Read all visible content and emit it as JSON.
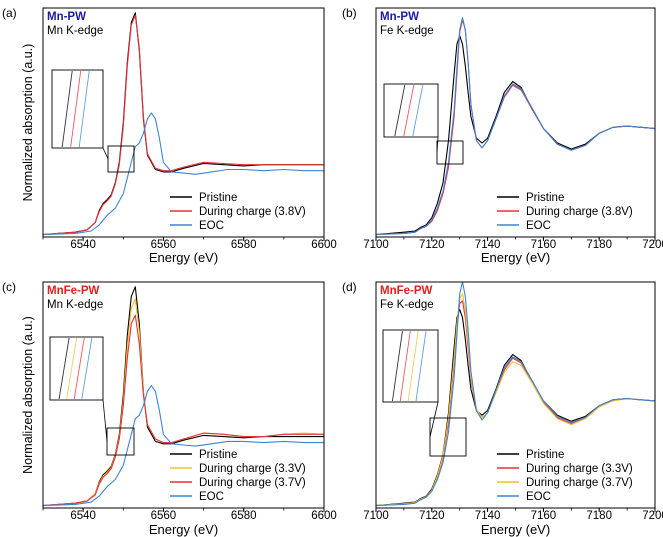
{
  "figure": {
    "description_free": true
  },
  "colors": {
    "pristine": "#000000",
    "during_red": "#e8303a",
    "during_yellow": "#f2c230",
    "eoc": "#3a86d6",
    "mn_pw_label": "#1a1aa8",
    "mnfe_pw_label": "#e02020"
  },
  "chart_data": [
    {
      "type": "line",
      "panel_label": "(a)",
      "title": "Mn-PW",
      "subtitle": "Mn K-edge",
      "title_color": "#1a1aa8",
      "xlabel": "Energy (eV)",
      "ylabel": "Normalized absorption (a.u.)",
      "xlim": [
        6530,
        6600
      ],
      "ylim": [
        0,
        1.9
      ],
      "x_ticks": [
        6540,
        6560,
        6580,
        6600
      ],
      "legend": "bottom-right",
      "series": [
        {
          "name": "Pristine",
          "color": "#000000",
          "x": [
            6530,
            6538,
            6541,
            6543,
            6544,
            6545,
            6546,
            6547,
            6548,
            6549,
            6550,
            6551,
            6552,
            6553,
            6554,
            6555,
            6556,
            6558,
            6560,
            6562,
            6565,
            6570,
            6575,
            6580,
            6585,
            6590,
            6595,
            6600
          ],
          "y": [
            0.02,
            0.04,
            0.06,
            0.12,
            0.22,
            0.28,
            0.31,
            0.35,
            0.45,
            0.62,
            0.95,
            1.45,
            1.78,
            1.86,
            1.55,
            0.98,
            0.68,
            0.56,
            0.54,
            0.54,
            0.57,
            0.61,
            0.6,
            0.59,
            0.6,
            0.6,
            0.6,
            0.6
          ]
        },
        {
          "name": "During charge (3.8V)",
          "color": "#e8303a",
          "x": [
            6530,
            6538,
            6541,
            6543,
            6544,
            6545,
            6546,
            6547,
            6548,
            6549,
            6550,
            6551,
            6552,
            6553,
            6554,
            6555,
            6556,
            6558,
            6560,
            6562,
            6565,
            6570,
            6575,
            6580,
            6585,
            6590,
            6595,
            6600
          ],
          "y": [
            0.02,
            0.04,
            0.06,
            0.12,
            0.21,
            0.27,
            0.3,
            0.34,
            0.44,
            0.6,
            0.92,
            1.42,
            1.76,
            1.84,
            1.57,
            1.0,
            0.69,
            0.57,
            0.55,
            0.55,
            0.58,
            0.62,
            0.61,
            0.6,
            0.6,
            0.6,
            0.6,
            0.6
          ]
        },
        {
          "name": "EOC",
          "color": "#3a86d6",
          "x": [
            6530,
            6538,
            6542,
            6544,
            6546,
            6548,
            6550,
            6552,
            6553,
            6554,
            6555,
            6556,
            6557,
            6558,
            6559,
            6560,
            6562,
            6565,
            6568,
            6572,
            6576,
            6580,
            6585,
            6590,
            6595,
            6600
          ],
          "y": [
            0.02,
            0.03,
            0.05,
            0.1,
            0.18,
            0.24,
            0.36,
            0.62,
            0.75,
            0.78,
            0.86,
            0.98,
            1.03,
            0.98,
            0.82,
            0.62,
            0.54,
            0.53,
            0.52,
            0.54,
            0.56,
            0.56,
            0.55,
            0.56,
            0.55,
            0.55
          ]
        }
      ]
    },
    {
      "type": "line",
      "panel_label": "(b)",
      "title": "Mn-PW",
      "subtitle": "Fe K-edge",
      "title_color": "#1a1aa8",
      "xlabel": "Energy (eV)",
      "ylabel": "",
      "xlim": [
        7100,
        7200
      ],
      "ylim": [
        0,
        1.9
      ],
      "x_ticks": [
        7100,
        7120,
        7140,
        7160,
        7180,
        7200
      ],
      "legend": "bottom-right",
      "series": [
        {
          "name": "Pristine",
          "color": "#000000",
          "x": [
            7100,
            7110,
            7114,
            7116,
            7118,
            7120,
            7122,
            7124,
            7126,
            7128,
            7129,
            7130,
            7131,
            7132,
            7133,
            7134,
            7136,
            7138,
            7140,
            7143,
            7146,
            7149,
            7152,
            7156,
            7160,
            7165,
            7170,
            7175,
            7180,
            7185,
            7190,
            7195,
            7200
          ],
          "y": [
            0.02,
            0.04,
            0.05,
            0.08,
            0.1,
            0.16,
            0.28,
            0.45,
            0.8,
            1.35,
            1.6,
            1.67,
            1.6,
            1.42,
            1.2,
            1.0,
            0.82,
            0.78,
            0.82,
            1.0,
            1.2,
            1.29,
            1.24,
            1.06,
            0.9,
            0.78,
            0.73,
            0.77,
            0.86,
            0.91,
            0.92,
            0.91,
            0.9
          ]
        },
        {
          "name": "During charge (3.8V)",
          "color": "#e8303a",
          "x": [
            7100,
            7110,
            7114,
            7116,
            7118,
            7120,
            7122,
            7124,
            7126,
            7128,
            7129,
            7130,
            7131,
            7132,
            7133,
            7134,
            7136,
            7138,
            7140,
            7143,
            7146,
            7149,
            7152,
            7156,
            7160,
            7165,
            7170,
            7175,
            7180,
            7185,
            7190,
            7195,
            7200
          ],
          "y": [
            0.02,
            0.03,
            0.04,
            0.07,
            0.09,
            0.13,
            0.22,
            0.36,
            0.58,
            1.0,
            1.35,
            1.7,
            1.8,
            1.72,
            1.45,
            1.1,
            0.8,
            0.74,
            0.8,
            0.98,
            1.16,
            1.26,
            1.22,
            1.06,
            0.9,
            0.77,
            0.72,
            0.76,
            0.86,
            0.91,
            0.92,
            0.91,
            0.9
          ]
        },
        {
          "name": "EOC",
          "color": "#3a86d6",
          "x": [
            7100,
            7110,
            7114,
            7116,
            7118,
            7120,
            7122,
            7124,
            7126,
            7128,
            7129,
            7130,
            7131,
            7132,
            7133,
            7134,
            7136,
            7138,
            7140,
            7143,
            7146,
            7149,
            7152,
            7156,
            7160,
            7165,
            7170,
            7175,
            7180,
            7185,
            7190,
            7195,
            7200
          ],
          "y": [
            0.02,
            0.03,
            0.04,
            0.07,
            0.09,
            0.14,
            0.24,
            0.38,
            0.62,
            1.05,
            1.4,
            1.72,
            1.82,
            1.72,
            1.45,
            1.1,
            0.8,
            0.74,
            0.8,
            0.98,
            1.17,
            1.27,
            1.23,
            1.07,
            0.9,
            0.77,
            0.72,
            0.76,
            0.86,
            0.91,
            0.92,
            0.91,
            0.9
          ]
        }
      ]
    },
    {
      "type": "line",
      "panel_label": "(c)",
      "title": "MnFe-PW",
      "subtitle": "Mn K-edge",
      "title_color": "#e02020",
      "xlabel": "Energy (eV)",
      "ylabel": "Normalized absorption (a.u.)",
      "xlim": [
        6530,
        6600
      ],
      "ylim": [
        0,
        1.9
      ],
      "x_ticks": [
        6540,
        6560,
        6580,
        6600
      ],
      "legend": "bottom-right",
      "series": [
        {
          "name": "Pristine",
          "color": "#000000",
          "x": [
            6530,
            6538,
            6541,
            6543,
            6544,
            6545,
            6546,
            6547,
            6548,
            6549,
            6550,
            6551,
            6552,
            6553,
            6554,
            6555,
            6556,
            6558,
            6560,
            6562,
            6565,
            6570,
            6575,
            6580,
            6585,
            6590,
            6595,
            6600
          ],
          "y": [
            0.02,
            0.04,
            0.06,
            0.12,
            0.22,
            0.28,
            0.31,
            0.35,
            0.45,
            0.62,
            0.95,
            1.45,
            1.78,
            1.86,
            1.55,
            0.98,
            0.68,
            0.56,
            0.54,
            0.54,
            0.57,
            0.61,
            0.6,
            0.59,
            0.6,
            0.6,
            0.6,
            0.6
          ]
        },
        {
          "name": "During charge (3.3V)",
          "color": "#f2c230",
          "x": [
            6530,
            6538,
            6541,
            6543,
            6544,
            6545,
            6546,
            6547,
            6548,
            6549,
            6550,
            6551,
            6552,
            6553,
            6554,
            6555,
            6556,
            6558,
            6560,
            6562,
            6565,
            6570,
            6575,
            6580,
            6585,
            6590,
            6595,
            6600
          ],
          "y": [
            0.02,
            0.04,
            0.06,
            0.12,
            0.21,
            0.27,
            0.3,
            0.34,
            0.44,
            0.6,
            0.9,
            1.36,
            1.68,
            1.76,
            1.48,
            0.98,
            0.7,
            0.58,
            0.55,
            0.55,
            0.58,
            0.63,
            0.62,
            0.6,
            0.6,
            0.62,
            0.63,
            0.62
          ]
        },
        {
          "name": "During charge (3.7V)",
          "color": "#e8303a",
          "x": [
            6530,
            6538,
            6541,
            6543,
            6544,
            6545,
            6546,
            6547,
            6548,
            6549,
            6550,
            6551,
            6552,
            6553,
            6554,
            6555,
            6556,
            6558,
            6560,
            6562,
            6565,
            6570,
            6575,
            6580,
            6585,
            6590,
            6595,
            6600
          ],
          "y": [
            0.02,
            0.04,
            0.06,
            0.11,
            0.2,
            0.26,
            0.29,
            0.33,
            0.43,
            0.58,
            0.86,
            1.26,
            1.55,
            1.62,
            1.38,
            0.95,
            0.7,
            0.58,
            0.55,
            0.55,
            0.58,
            0.63,
            0.62,
            0.6,
            0.6,
            0.62,
            0.62,
            0.62
          ]
        },
        {
          "name": "EOC",
          "color": "#3a86d6",
          "x": [
            6530,
            6538,
            6542,
            6544,
            6546,
            6548,
            6550,
            6552,
            6553,
            6554,
            6555,
            6556,
            6557,
            6558,
            6559,
            6560,
            6562,
            6565,
            6568,
            6572,
            6576,
            6580,
            6585,
            6590,
            6595,
            6600
          ],
          "y": [
            0.02,
            0.03,
            0.05,
            0.1,
            0.18,
            0.24,
            0.36,
            0.62,
            0.75,
            0.78,
            0.86,
            0.98,
            1.03,
            0.98,
            0.82,
            0.62,
            0.54,
            0.53,
            0.52,
            0.54,
            0.56,
            0.56,
            0.55,
            0.56,
            0.55,
            0.55
          ]
        }
      ]
    },
    {
      "type": "line",
      "panel_label": "(d)",
      "title": "MnFe-PW",
      "subtitle": "Fe K-edge",
      "title_color": "#e02020",
      "xlabel": "Energy (eV)",
      "ylabel": "",
      "xlim": [
        7100,
        7200
      ],
      "ylim": [
        0,
        1.9
      ],
      "x_ticks": [
        7100,
        7120,
        7140,
        7160,
        7180,
        7200
      ],
      "legend": "bottom-right",
      "series": [
        {
          "name": "Pristine",
          "color": "#000000",
          "x": [
            7100,
            7110,
            7114,
            7116,
            7118,
            7120,
            7122,
            7124,
            7126,
            7128,
            7129,
            7130,
            7131,
            7132,
            7133,
            7134,
            7136,
            7138,
            7140,
            7143,
            7146,
            7149,
            7152,
            7156,
            7160,
            7165,
            7170,
            7175,
            7180,
            7185,
            7190,
            7195,
            7200
          ],
          "y": [
            0.02,
            0.04,
            0.05,
            0.08,
            0.1,
            0.16,
            0.28,
            0.45,
            0.8,
            1.35,
            1.6,
            1.67,
            1.6,
            1.42,
            1.2,
            1.0,
            0.82,
            0.78,
            0.82,
            1.0,
            1.2,
            1.29,
            1.24,
            1.06,
            0.9,
            0.78,
            0.73,
            0.77,
            0.86,
            0.91,
            0.92,
            0.91,
            0.9
          ]
        },
        {
          "name": "During charge (3.3V)",
          "color": "#e8303a",
          "x": [
            7100,
            7110,
            7114,
            7116,
            7118,
            7120,
            7122,
            7124,
            7126,
            7128,
            7129,
            7130,
            7131,
            7132,
            7133,
            7134,
            7136,
            7138,
            7140,
            7143,
            7146,
            7149,
            7152,
            7156,
            7160,
            7165,
            7170,
            7175,
            7180,
            7185,
            7190,
            7195,
            7200
          ],
          "y": [
            0.02,
            0.035,
            0.045,
            0.075,
            0.095,
            0.15,
            0.26,
            0.42,
            0.72,
            1.22,
            1.5,
            1.72,
            1.74,
            1.6,
            1.35,
            1.08,
            0.82,
            0.76,
            0.8,
            0.98,
            1.16,
            1.26,
            1.22,
            1.06,
            0.89,
            0.76,
            0.71,
            0.76,
            0.86,
            0.91,
            0.92,
            0.91,
            0.9
          ]
        },
        {
          "name": "During charge (3.7V)",
          "color": "#f2c230",
          "x": [
            7100,
            7110,
            7114,
            7116,
            7118,
            7120,
            7122,
            7124,
            7126,
            7128,
            7129,
            7130,
            7131,
            7132,
            7133,
            7134,
            7136,
            7138,
            7140,
            7143,
            7146,
            7149,
            7152,
            7156,
            7160,
            7165,
            7170,
            7175,
            7180,
            7185,
            7190,
            7195,
            7200
          ],
          "y": [
            0.02,
            0.035,
            0.045,
            0.075,
            0.095,
            0.15,
            0.27,
            0.44,
            0.76,
            1.26,
            1.55,
            1.76,
            1.8,
            1.66,
            1.4,
            1.1,
            0.83,
            0.76,
            0.8,
            0.97,
            1.14,
            1.23,
            1.2,
            1.05,
            0.88,
            0.75,
            0.7,
            0.75,
            0.85,
            0.9,
            0.92,
            0.91,
            0.9
          ]
        },
        {
          "name": "EOC",
          "color": "#3a86d6",
          "x": [
            7100,
            7110,
            7114,
            7116,
            7118,
            7120,
            7122,
            7124,
            7126,
            7128,
            7129,
            7130,
            7131,
            7132,
            7133,
            7134,
            7136,
            7138,
            7140,
            7143,
            7146,
            7149,
            7152,
            7156,
            7160,
            7165,
            7170,
            7175,
            7180,
            7185,
            7190,
            7195,
            7200
          ],
          "y": [
            0.02,
            0.03,
            0.04,
            0.07,
            0.09,
            0.14,
            0.24,
            0.38,
            0.64,
            1.1,
            1.45,
            1.8,
            1.9,
            1.78,
            1.5,
            1.15,
            0.82,
            0.74,
            0.8,
            0.99,
            1.18,
            1.27,
            1.23,
            1.07,
            0.9,
            0.77,
            0.72,
            0.76,
            0.86,
            0.91,
            0.92,
            0.91,
            0.9
          ]
        }
      ]
    }
  ]
}
